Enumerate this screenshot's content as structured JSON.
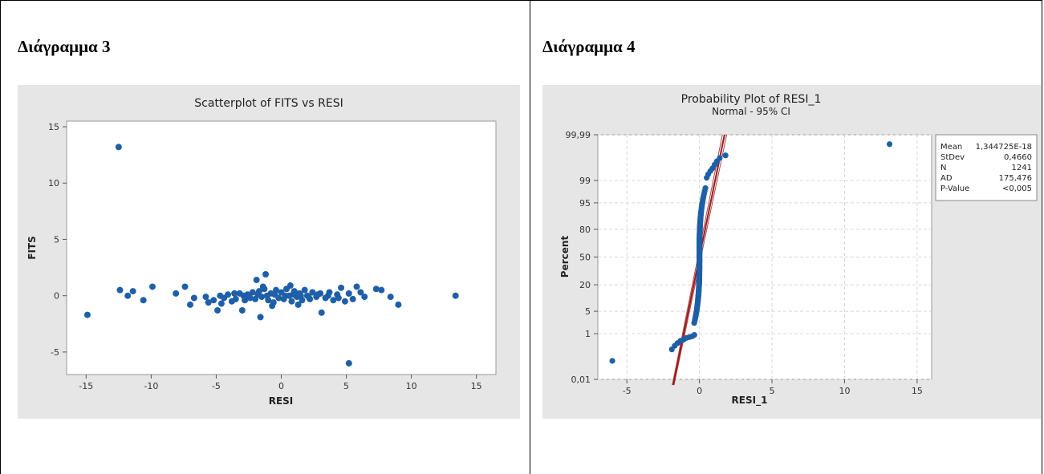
{
  "panels": [
    {
      "heading": "Διάγραμμα 3"
    },
    {
      "heading": "Διάγραμμα 4"
    }
  ],
  "chart_data": [
    {
      "type": "scatter",
      "title": "Scatterplot of FITS vs RESI",
      "xlabel": "RESI",
      "ylabel": "FITS",
      "xlim": [
        -16.5,
        16.5
      ],
      "ylim": [
        -7,
        15.5
      ],
      "xticks": [
        -15,
        -10,
        -5,
        0,
        5,
        10,
        15
      ],
      "yticks": [
        -5,
        0,
        5,
        10,
        15
      ],
      "color": "#1f5fa8",
      "points": [
        [
          -14.9,
          -1.7
        ],
        [
          -12.5,
          13.2
        ],
        [
          -12.4,
          0.5
        ],
        [
          -11.8,
          0.0
        ],
        [
          -11.4,
          0.4
        ],
        [
          -10.6,
          -0.4
        ],
        [
          -9.9,
          0.8
        ],
        [
          -8.1,
          0.2
        ],
        [
          -7.4,
          0.8
        ],
        [
          -7.0,
          -0.8
        ],
        [
          -6.7,
          -0.2
        ],
        [
          -5.8,
          -0.1
        ],
        [
          -5.6,
          -0.6
        ],
        [
          -5.2,
          -0.4
        ],
        [
          -4.9,
          -1.3
        ],
        [
          -4.6,
          -0.7
        ],
        [
          -4.4,
          -0.2
        ],
        [
          -4.1,
          0.1
        ],
        [
          -3.8,
          -0.5
        ],
        [
          -3.5,
          -0.3
        ],
        [
          -3.2,
          0.2
        ],
        [
          -3.0,
          -1.3
        ],
        [
          -2.8,
          -0.4
        ],
        [
          -2.6,
          0.1
        ],
        [
          -2.4,
          -0.2
        ],
        [
          -2.2,
          0.3
        ],
        [
          -2.0,
          -0.3
        ],
        [
          -1.9,
          1.4
        ],
        [
          -1.7,
          0.4
        ],
        [
          -1.6,
          -1.9
        ],
        [
          -1.5,
          -0.1
        ],
        [
          -1.3,
          0.6
        ],
        [
          -1.2,
          1.9
        ],
        [
          -1.0,
          -0.4
        ],
        [
          -0.8,
          0.2
        ],
        [
          -0.6,
          -0.6
        ],
        [
          -0.4,
          0.5
        ],
        [
          -0.2,
          -0.2
        ],
        [
          0.0,
          0.3
        ],
        [
          0.2,
          -0.3
        ],
        [
          0.4,
          0.6
        ],
        [
          0.6,
          0.0
        ],
        [
          0.8,
          -0.5
        ],
        [
          1.0,
          0.4
        ],
        [
          1.2,
          -0.1
        ],
        [
          1.4,
          0.2
        ],
        [
          1.6,
          -0.4
        ],
        [
          1.8,
          0.5
        ],
        [
          2.0,
          0.0
        ],
        [
          2.2,
          -0.3
        ],
        [
          2.4,
          0.3
        ],
        [
          2.7,
          -0.1
        ],
        [
          3.0,
          0.2
        ],
        [
          3.1,
          -1.5
        ],
        [
          3.4,
          -0.2
        ],
        [
          3.7,
          0.3
        ],
        [
          4.0,
          -0.4
        ],
        [
          4.3,
          0.1
        ],
        [
          4.6,
          0.7
        ],
        [
          4.9,
          -0.5
        ],
        [
          5.2,
          0.2
        ],
        [
          5.2,
          -6.0
        ],
        [
          5.5,
          -0.3
        ],
        [
          5.8,
          0.8
        ],
        [
          6.1,
          0.3
        ],
        [
          6.4,
          -0.1
        ],
        [
          7.3,
          0.6
        ],
        [
          7.7,
          0.5
        ],
        [
          8.4,
          -0.1
        ],
        [
          9.0,
          -0.8
        ],
        [
          13.4,
          0.0
        ],
        [
          -2.9,
          0.0
        ],
        [
          -2.5,
          -0.1
        ],
        [
          -1.8,
          0.1
        ],
        [
          -1.1,
          0.0
        ],
        [
          -0.5,
          0.1
        ],
        [
          0.3,
          0.0
        ],
        [
          0.9,
          0.1
        ],
        [
          1.5,
          0.0
        ],
        [
          2.1,
          -0.1
        ],
        [
          2.8,
          0.1
        ],
        [
          -4.7,
          0.0
        ],
        [
          -3.6,
          0.2
        ],
        [
          3.6,
          0.0
        ],
        [
          4.4,
          -0.2
        ],
        [
          -0.7,
          -0.9
        ],
        [
          0.7,
          0.9
        ],
        [
          -1.4,
          0.8
        ],
        [
          1.3,
          -0.8
        ]
      ]
    },
    {
      "type": "scatter",
      "title": "Probability Plot of RESI_1",
      "subtitle": "Normal - 95% CI",
      "xlabel": "RESI_1",
      "ylabel": "Percent",
      "xlim": [
        -7,
        16
      ],
      "ylim": [
        0.01,
        99.99
      ],
      "y_scale": "normal-probability",
      "xticks": [
        -5,
        0,
        5,
        10,
        15
      ],
      "yticks": [
        0.01,
        1,
        5,
        20,
        50,
        80,
        95,
        99,
        99.99
      ],
      "ytick_labels": [
        "0,01",
        "1",
        "5",
        "20",
        "50",
        "80",
        "95",
        "99",
        "99,99"
      ],
      "grid": true,
      "color": "#1f5fa8",
      "fit_line_color": "#9b1b1b",
      "stats": [
        {
          "label": "Mean",
          "value": "1,344725E-18"
        },
        {
          "label": "StDev",
          "value": "0,4660"
        },
        {
          "label": "N",
          "value": "1241"
        },
        {
          "label": "AD",
          "value": "175,476"
        },
        {
          "label": "P-Value",
          "value": "<0,005"
        }
      ]
    }
  ]
}
